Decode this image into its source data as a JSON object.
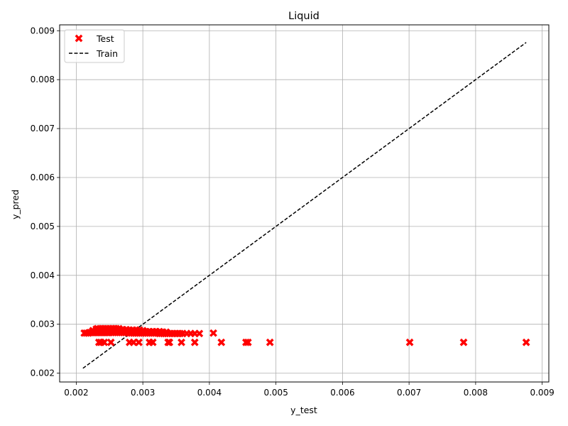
{
  "chart_data": {
    "type": "scatter",
    "title": "Liquid",
    "xlabel": "y_test",
    "ylabel": "y_pred",
    "xlim": [
      0.00175,
      0.0091
    ],
    "ylim": [
      0.00182,
      0.00912
    ],
    "xticks": [
      "0.002",
      "0.003",
      "0.004",
      "0.005",
      "0.006",
      "0.007",
      "0.008",
      "0.009"
    ],
    "yticks": [
      "0.002",
      "0.003",
      "0.004",
      "0.005",
      "0.006",
      "0.007",
      "0.008",
      "0.009"
    ],
    "grid": true,
    "legend_position": "top-left",
    "series": [
      {
        "name": "Test",
        "kind": "scatter",
        "marker": "X",
        "color": "#ff0000",
        "x": [
          0.00212,
          0.00215,
          0.00218,
          0.0022,
          0.00222,
          0.00224,
          0.00226,
          0.00228,
          0.0023,
          0.00232,
          0.00234,
          0.00236,
          0.00238,
          0.0024,
          0.00242,
          0.00244,
          0.00246,
          0.00248,
          0.0025,
          0.00253,
          0.00256,
          0.00259,
          0.00262,
          0.00265,
          0.00268,
          0.00271,
          0.00274,
          0.00277,
          0.0028,
          0.00283,
          0.00286,
          0.00289,
          0.00292,
          0.00295,
          0.00298,
          0.00301,
          0.00304,
          0.00307,
          0.0031,
          0.00313,
          0.00316,
          0.00319,
          0.00322,
          0.00325,
          0.00328,
          0.00331,
          0.00334,
          0.00337,
          0.0034,
          0.00344,
          0.00348,
          0.00352,
          0.00356,
          0.0036,
          0.00366,
          0.00372,
          0.00378,
          0.00385,
          0.00406,
          0.00225,
          0.0023,
          0.00235,
          0.0024,
          0.00245,
          0.0025,
          0.00255,
          0.0026,
          0.00265,
          0.0027,
          0.00275,
          0.0028,
          0.00285,
          0.0029,
          0.00295,
          0.003,
          0.00305,
          0.0031,
          0.00315,
          0.0032,
          0.00325,
          0.0033,
          0.00335,
          0.0023,
          0.00235,
          0.0024,
          0.00245,
          0.0025,
          0.00255,
          0.0026,
          0.00265,
          0.0027,
          0.00275,
          0.0028,
          0.00285,
          0.0029,
          0.00295,
          0.003,
          0.00232,
          0.00236,
          0.0024,
          0.00244,
          0.00248,
          0.00252,
          0.00256,
          0.0026,
          0.00264,
          0.00234,
          0.00237,
          0.00242,
          0.00252,
          0.0028,
          0.00286,
          0.00294,
          0.0031,
          0.00315,
          0.00338,
          0.0034,
          0.00358,
          0.00378,
          0.00418,
          0.00455,
          0.00458,
          0.00491,
          0.00701,
          0.00782,
          0.00876
        ],
        "y": [
          0.00282,
          0.00282,
          0.00282,
          0.00283,
          0.00283,
          0.00283,
          0.00283,
          0.00283,
          0.00283,
          0.00283,
          0.00283,
          0.00283,
          0.00283,
          0.00283,
          0.00283,
          0.00283,
          0.00283,
          0.00283,
          0.00283,
          0.00283,
          0.00283,
          0.00283,
          0.00283,
          0.00283,
          0.00283,
          0.00283,
          0.00283,
          0.00283,
          0.00282,
          0.00282,
          0.00282,
          0.00282,
          0.00282,
          0.00282,
          0.00282,
          0.00282,
          0.00282,
          0.00282,
          0.00282,
          0.00282,
          0.00282,
          0.00282,
          0.00282,
          0.00281,
          0.00281,
          0.00281,
          0.00281,
          0.00281,
          0.00281,
          0.00281,
          0.00281,
          0.00281,
          0.00281,
          0.00281,
          0.00281,
          0.00281,
          0.00281,
          0.00281,
          0.00282,
          0.00287,
          0.00287,
          0.00287,
          0.00287,
          0.00287,
          0.00287,
          0.00287,
          0.00287,
          0.00287,
          0.00287,
          0.00287,
          0.00286,
          0.00286,
          0.00286,
          0.00286,
          0.00285,
          0.00285,
          0.00285,
          0.00285,
          0.00285,
          0.00285,
          0.00284,
          0.00284,
          0.0029,
          0.0029,
          0.0029,
          0.0029,
          0.0029,
          0.0029,
          0.0029,
          0.00289,
          0.00289,
          0.00289,
          0.00288,
          0.00288,
          0.00288,
          0.00288,
          0.00287,
          0.00291,
          0.00291,
          0.00291,
          0.00291,
          0.00291,
          0.00291,
          0.00291,
          0.00291,
          0.00291,
          0.00263,
          0.00263,
          0.00263,
          0.00263,
          0.00263,
          0.00263,
          0.00263,
          0.00263,
          0.00263,
          0.00263,
          0.00263,
          0.00263,
          0.00263,
          0.00263,
          0.00263,
          0.00263,
          0.00263,
          0.00263,
          0.00263,
          0.00263
        ]
      },
      {
        "name": "Train",
        "kind": "line",
        "color": "#000000",
        "x": [
          0.0021,
          0.00876
        ],
        "y": [
          0.0021,
          0.00876
        ]
      }
    ]
  }
}
